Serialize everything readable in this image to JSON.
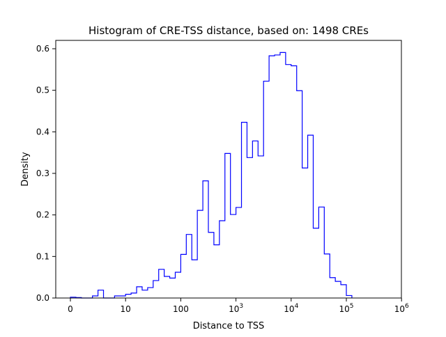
{
  "chart_data": {
    "type": "histogram",
    "title": "Histogram of CRE-TSS distance, based on: 1498 CREs",
    "xlabel": "Distance to TSS",
    "ylabel": "Density",
    "x_scale": "log-like (linear below 10)",
    "x_ticks": [
      {
        "value": 0,
        "label": "0",
        "sup": ""
      },
      {
        "value": 10,
        "label": "10",
        "sup": ""
      },
      {
        "value": 100,
        "label": "100",
        "sup": ""
      },
      {
        "value": 1000,
        "label": "10",
        "sup": "3"
      },
      {
        "value": 10000,
        "label": "10",
        "sup": "4"
      },
      {
        "value": 100000,
        "label": "10",
        "sup": "5"
      },
      {
        "value": 1000000,
        "label": "10",
        "sup": "6"
      }
    ],
    "y_ticks": [
      0.0,
      0.1,
      0.2,
      0.3,
      0.4,
      0.5,
      0.6
    ],
    "ylim": [
      0,
      0.6
    ],
    "grid": false,
    "line_color": "#0000ff",
    "bins": {
      "start": 0,
      "step_decades": 0.1,
      "densities": [
        0.002,
        0.001,
        0.0,
        0.0,
        0.005,
        0.019,
        0.0,
        0.0,
        0.005,
        0.005,
        0.009,
        0.012,
        0.027,
        0.019,
        0.025,
        0.042,
        0.069,
        0.052,
        0.048,
        0.062,
        0.105,
        0.153,
        0.092,
        0.211,
        0.282,
        0.158,
        0.128,
        0.186,
        0.348,
        0.201,
        0.218,
        0.423,
        0.338,
        0.378,
        0.342,
        0.522,
        0.583,
        0.585,
        0.591,
        0.562,
        0.559,
        0.499,
        0.313,
        0.392,
        0.168,
        0.219,
        0.106,
        0.049,
        0.04,
        0.032,
        0.006
      ]
    }
  }
}
